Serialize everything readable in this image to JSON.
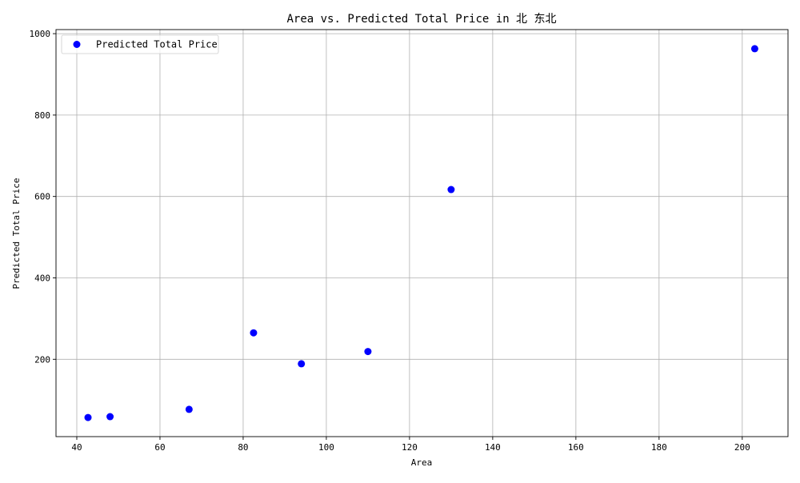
{
  "chart_data": {
    "type": "scatter",
    "title": "Area vs. Predicted Total Price in 北 东北",
    "xlabel": "Area",
    "ylabel": "Predicted Total Price",
    "xlim": [
      35,
      211
    ],
    "ylim": [
      10,
      1010
    ],
    "xticks": [
      40,
      60,
      80,
      100,
      120,
      140,
      160,
      180,
      200
    ],
    "yticks": [
      200,
      400,
      600,
      800,
      1000
    ],
    "grid": true,
    "legend_position": "top-left",
    "series": [
      {
        "name": "Predicted Total Price",
        "color": "#0000ff",
        "marker": "circle",
        "points": [
          {
            "x": 42.7,
            "y": 57
          },
          {
            "x": 48.0,
            "y": 59
          },
          {
            "x": 67.0,
            "y": 77
          },
          {
            "x": 82.5,
            "y": 265
          },
          {
            "x": 94.0,
            "y": 189
          },
          {
            "x": 110.0,
            "y": 219
          },
          {
            "x": 130.0,
            "y": 617
          },
          {
            "x": 203.0,
            "y": 963
          }
        ]
      }
    ]
  }
}
